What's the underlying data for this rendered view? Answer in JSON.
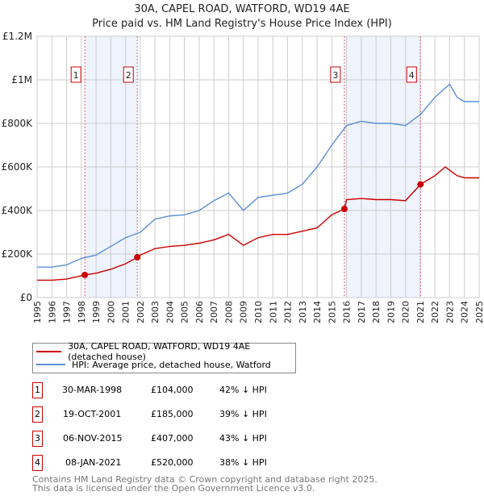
{
  "title": "30A, CAPEL ROAD, WATFORD, WD19 4AE",
  "subtitle": "Price paid vs. HM Land Registry's House Price Index (HPI)",
  "chart_data": {
    "type": "line",
    "ylim": [
      0,
      1200000
    ],
    "xlim": [
      1995,
      2025
    ],
    "yticks": [
      {
        "v": 0,
        "label": "£0"
      },
      {
        "v": 200000,
        "label": "£200K"
      },
      {
        "v": 400000,
        "label": "£400K"
      },
      {
        "v": 600000,
        "label": "£600K"
      },
      {
        "v": 800000,
        "label": "£800K"
      },
      {
        "v": 1000000,
        "label": "£1M"
      },
      {
        "v": 1200000,
        "label": "£1.2M"
      }
    ],
    "xticks": [
      1995,
      1996,
      1997,
      1998,
      1999,
      2000,
      2001,
      2002,
      2003,
      2004,
      2005,
      2006,
      2007,
      2008,
      2009,
      2010,
      2011,
      2012,
      2013,
      2014,
      2015,
      2016,
      2017,
      2018,
      2019,
      2020,
      2021,
      2022,
      2023,
      2024,
      2025
    ],
    "grid": true,
    "series": [
      {
        "name": "30A, CAPEL ROAD, WATFORD, WD19 4AE (detached house)",
        "color": "#cc0000",
        "x": [
          1995,
          1996,
          1997,
          1998.24,
          1999,
          2000,
          2001,
          2001.8,
          2002,
          2003,
          2004,
          2005,
          2006,
          2007,
          2008,
          2009,
          2010,
          2011,
          2012,
          2013,
          2014,
          2015,
          2015.85,
          2016,
          2017,
          2018,
          2019,
          2020,
          2021.02,
          2022,
          2022.7,
          2023.5,
          2024,
          2025
        ],
        "y": [
          80000,
          80000,
          85000,
          104000,
          112000,
          130000,
          155000,
          185000,
          195000,
          225000,
          235000,
          240000,
          250000,
          265000,
          290000,
          240000,
          275000,
          290000,
          290000,
          305000,
          320000,
          380000,
          407000,
          450000,
          455000,
          450000,
          450000,
          445000,
          520000,
          560000,
          600000,
          560000,
          550000,
          550000
        ]
      },
      {
        "name": "HPI: Average price, detached house, Watford",
        "color": "#5b8fd6",
        "x": [
          1995,
          1996,
          1997,
          1998,
          1999,
          2000,
          2001,
          2002,
          2003,
          2004,
          2005,
          2006,
          2007,
          2008,
          2009,
          2010,
          2011,
          2012,
          2013,
          2014,
          2015,
          2016,
          2017,
          2018,
          2019,
          2020,
          2021,
          2022,
          2023,
          2023.5,
          2024,
          2025
        ],
        "y": [
          140000,
          140000,
          150000,
          180000,
          195000,
          235000,
          275000,
          300000,
          360000,
          375000,
          380000,
          400000,
          445000,
          480000,
          400000,
          460000,
          470000,
          480000,
          520000,
          600000,
          700000,
          790000,
          810000,
          800000,
          800000,
          790000,
          840000,
          920000,
          980000,
          920000,
          900000,
          900000
        ]
      }
    ],
    "sales": [
      {
        "n": "1",
        "x": 1998.24,
        "y": 104000
      },
      {
        "n": "2",
        "x": 2001.8,
        "y": 185000
      },
      {
        "n": "3",
        "x": 2015.85,
        "y": 407000
      },
      {
        "n": "4",
        "x": 2021.02,
        "y": 520000
      }
    ]
  },
  "legend": [
    "30A, CAPEL ROAD, WATFORD, WD19 4AE (detached house)",
    "HPI: Average price, detached house, Watford"
  ],
  "table": [
    {
      "n": "1",
      "date": "30-MAR-1998",
      "price": "£104,000",
      "hpi": "42% ↓ HPI"
    },
    {
      "n": "2",
      "date": "19-OCT-2001",
      "price": "£185,000",
      "hpi": "39% ↓ HPI"
    },
    {
      "n": "3",
      "date": "06-NOV-2015",
      "price": "£407,000",
      "hpi": "43% ↓ HPI"
    },
    {
      "n": "4",
      "date": "08-JAN-2021",
      "price": "£520,000",
      "hpi": "38% ↓ HPI"
    }
  ],
  "footer": [
    "Contains HM Land Registry data © Crown copyright and database right 2025.",
    "This data is licensed under the Open Government Licence v3.0."
  ]
}
